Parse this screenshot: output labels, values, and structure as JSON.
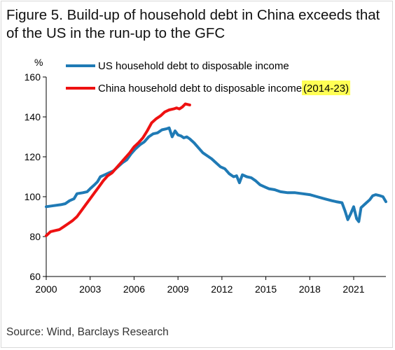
{
  "figure": {
    "title": "Figure 5. Build-up of household debt in China exceeds that of the US in the run-up to the GFC",
    "source": "Source: Wind, Barclays Research"
  },
  "chart_data": {
    "type": "line",
    "ylabel": "%",
    "xlabel": "",
    "xlim": [
      2000,
      2023.2
    ],
    "ylim": [
      60,
      160
    ],
    "x_ticks": [
      "2000",
      "2003",
      "2006",
      "2009",
      "2012",
      "2015",
      "2018",
      "2021"
    ],
    "x_tick_values": [
      2000,
      2003,
      2006,
      2009,
      2012,
      2015,
      2018,
      2021
    ],
    "y_ticks": [
      60,
      80,
      100,
      120,
      140,
      160
    ],
    "grid": false,
    "legend_position": "top-left",
    "series": [
      {
        "name": "US household debt to disposable income",
        "color": "#1f7ab5",
        "points": [
          [
            2000.0,
            95.0
          ],
          [
            2000.5,
            95.5
          ],
          [
            2001.0,
            96.0
          ],
          [
            2001.3,
            96.5
          ],
          [
            2001.6,
            98.0
          ],
          [
            2001.9,
            99.0
          ],
          [
            2002.1,
            101.5
          ],
          [
            2002.5,
            102.0
          ],
          [
            2002.8,
            102.5
          ],
          [
            2003.0,
            104.0
          ],
          [
            2003.3,
            106.0
          ],
          [
            2003.5,
            107.5
          ],
          [
            2003.7,
            110.0
          ],
          [
            2004.0,
            111.0
          ],
          [
            2004.3,
            112.0
          ],
          [
            2004.6,
            113.0
          ],
          [
            2004.9,
            115.0
          ],
          [
            2005.2,
            117.0
          ],
          [
            2005.5,
            118.5
          ],
          [
            2005.8,
            121.5
          ],
          [
            2006.1,
            124.0
          ],
          [
            2006.4,
            126.0
          ],
          [
            2006.7,
            127.5
          ],
          [
            2007.0,
            130.0
          ],
          [
            2007.3,
            131.5
          ],
          [
            2007.6,
            132.0
          ],
          [
            2007.9,
            133.5
          ],
          [
            2008.2,
            134.0
          ],
          [
            2008.4,
            134.5
          ],
          [
            2008.6,
            130.0
          ],
          [
            2008.8,
            133.0
          ],
          [
            2009.0,
            131.0
          ],
          [
            2009.2,
            130.5
          ],
          [
            2009.4,
            129.5
          ],
          [
            2009.6,
            130.0
          ],
          [
            2009.8,
            129.0
          ],
          [
            2010.1,
            127.0
          ],
          [
            2010.4,
            124.5
          ],
          [
            2010.7,
            122.0
          ],
          [
            2011.0,
            120.5
          ],
          [
            2011.3,
            119.0
          ],
          [
            2011.6,
            117.0
          ],
          [
            2011.9,
            115.0
          ],
          [
            2012.2,
            114.0
          ],
          [
            2012.5,
            111.5
          ],
          [
            2012.8,
            110.0
          ],
          [
            2013.0,
            110.5
          ],
          [
            2013.2,
            107.0
          ],
          [
            2013.4,
            111.0
          ],
          [
            2013.7,
            110.0
          ],
          [
            2014.0,
            109.5
          ],
          [
            2014.3,
            108.0
          ],
          [
            2014.6,
            106.0
          ],
          [
            2014.9,
            105.0
          ],
          [
            2015.2,
            104.0
          ],
          [
            2015.6,
            103.5
          ],
          [
            2016.0,
            102.5
          ],
          [
            2016.5,
            102.0
          ],
          [
            2017.0,
            102.0
          ],
          [
            2017.5,
            101.5
          ],
          [
            2018.0,
            101.0
          ],
          [
            2018.5,
            100.0
          ],
          [
            2019.0,
            99.0
          ],
          [
            2019.5,
            98.0
          ],
          [
            2019.8,
            97.5
          ],
          [
            2020.2,
            97.0
          ],
          [
            2020.4,
            93.0
          ],
          [
            2020.6,
            88.5
          ],
          [
            2020.8,
            91.5
          ],
          [
            2021.0,
            95.0
          ],
          [
            2021.2,
            89.0
          ],
          [
            2021.35,
            87.5
          ],
          [
            2021.5,
            94.5
          ],
          [
            2021.8,
            96.5
          ],
          [
            2022.1,
            98.5
          ],
          [
            2022.3,
            100.5
          ],
          [
            2022.5,
            101.0
          ],
          [
            2022.8,
            100.5
          ],
          [
            2023.0,
            100.0
          ],
          [
            2023.2,
            97.5
          ]
        ]
      },
      {
        "name": "China household debt to disposable income",
        "name_highlight": "(2014-23)",
        "color": "#ee1111",
        "points": [
          [
            2000.0,
            80.5
          ],
          [
            2000.3,
            82.5
          ],
          [
            2000.6,
            83.0
          ],
          [
            2000.9,
            83.5
          ],
          [
            2001.2,
            85.0
          ],
          [
            2001.5,
            86.5
          ],
          [
            2001.8,
            88.0
          ],
          [
            2002.1,
            90.0
          ],
          [
            2002.4,
            93.0
          ],
          [
            2002.7,
            96.0
          ],
          [
            2003.0,
            99.0
          ],
          [
            2003.3,
            102.0
          ],
          [
            2003.6,
            105.0
          ],
          [
            2003.9,
            108.0
          ],
          [
            2004.2,
            110.5
          ],
          [
            2004.5,
            112.0
          ],
          [
            2004.8,
            114.5
          ],
          [
            2005.1,
            117.0
          ],
          [
            2005.4,
            119.5
          ],
          [
            2005.7,
            122.0
          ],
          [
            2006.0,
            125.0
          ],
          [
            2006.3,
            127.0
          ],
          [
            2006.6,
            129.5
          ],
          [
            2006.9,
            133.0
          ],
          [
            2007.2,
            137.0
          ],
          [
            2007.5,
            139.0
          ],
          [
            2007.8,
            140.5
          ],
          [
            2008.1,
            142.5
          ],
          [
            2008.4,
            143.5
          ],
          [
            2008.7,
            144.0
          ],
          [
            2008.9,
            144.5
          ],
          [
            2009.1,
            144.0
          ],
          [
            2009.3,
            145.0
          ],
          [
            2009.5,
            146.5
          ],
          [
            2009.8,
            146.0
          ]
        ]
      }
    ]
  }
}
